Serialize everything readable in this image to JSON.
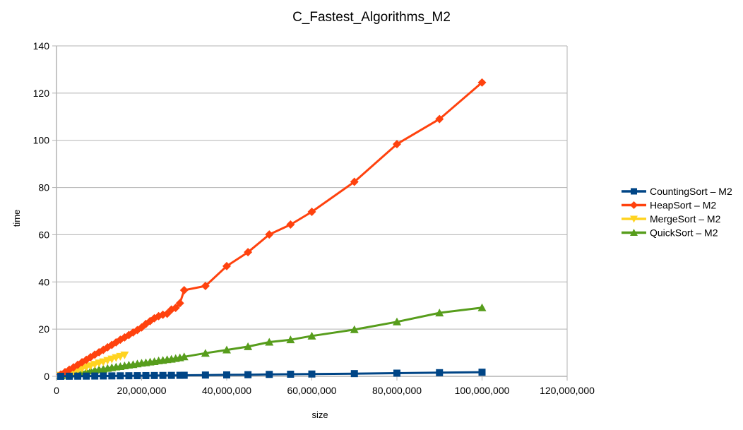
{
  "chart_data": {
    "type": "line",
    "title": "C_Fastest_Algorithms_M2",
    "xlabel": "size",
    "ylabel": "time",
    "xlim": [
      0,
      120000000
    ],
    "ylim": [
      0,
      140
    ],
    "x_ticks": [
      "0",
      "20,000,000",
      "40,000,000",
      "60,000,000",
      "80,000,000",
      "100,000,000",
      "120,000,000"
    ],
    "y_ticks": [
      "0",
      "20",
      "40",
      "60",
      "80",
      "100",
      "120",
      "140"
    ],
    "grid": "horizontal",
    "legend_position": "right",
    "series": [
      {
        "name": "CountingSort – M2",
        "color": "#004586",
        "marker": "square",
        "x": [
          1000000,
          3000000,
          5000000,
          7000000,
          9000000,
          11000000,
          13000000,
          15000000,
          17000000,
          19000000,
          21000000,
          23000000,
          25000000,
          27000000,
          29000000,
          30000000,
          35000000,
          40000000,
          45000000,
          50000000,
          55000000,
          60000000,
          70000000,
          80000000,
          90000000,
          100000000
        ],
        "y": [
          0.02,
          0.05,
          0.08,
          0.1,
          0.13,
          0.16,
          0.19,
          0.22,
          0.25,
          0.28,
          0.31,
          0.34,
          0.37,
          0.4,
          0.43,
          0.45,
          0.55,
          0.62,
          0.7,
          0.82,
          0.9,
          0.98,
          1.15,
          1.35,
          1.55,
          1.75
        ]
      },
      {
        "name": "HeapSort – M2",
        "color": "#ff420e",
        "marker": "diamond",
        "x": [
          1000000,
          2000000,
          3000000,
          4000000,
          5000000,
          6000000,
          7000000,
          8000000,
          9000000,
          10000000,
          11000000,
          12000000,
          13000000,
          14000000,
          15000000,
          16000000,
          17000000,
          18000000,
          19000000,
          20000000,
          21000000,
          22000000,
          23000000,
          24000000,
          25000000,
          26000000,
          27000000,
          28000000,
          29000000,
          30000000,
          35000000,
          40000000,
          45000000,
          50000000,
          55000000,
          60000000,
          70000000,
          80000000,
          90000000,
          100000000
        ],
        "y": [
          0.8,
          1.8,
          2.8,
          3.8,
          4.9,
          6.0,
          7.0,
          8.1,
          9.2,
          10.2,
          11.2,
          12.3,
          13.3,
          14.4,
          15.5,
          16.5,
          17.5,
          18.6,
          19.6,
          20.7,
          22.2,
          23.4,
          24.6,
          25.5,
          26.1,
          26.5,
          28.3,
          29.0,
          31.0,
          36.5,
          38.3,
          46.7,
          52.6,
          60.1,
          64.3,
          69.7,
          82.4,
          98.4,
          109.0,
          124.5
        ]
      },
      {
        "name": "MergeSort – M2",
        "color": "#ffd320",
        "marker": "triangle-down",
        "x": [
          1000000,
          2000000,
          3000000,
          4000000,
          5000000,
          6000000,
          7000000,
          8000000,
          9000000,
          10000000,
          11000000,
          12000000,
          13000000,
          14000000,
          15000000,
          16000000
        ],
        "y": [
          0.4,
          0.9,
          1.4,
          2.0,
          2.6,
          3.2,
          3.8,
          4.4,
          5.0,
          5.6,
          6.1,
          6.7,
          7.3,
          7.9,
          8.4,
          9.0
        ]
      },
      {
        "name": "QuickSort – M2",
        "color": "#579d1c",
        "marker": "triangle-up",
        "x": [
          1000000,
          2000000,
          3000000,
          4000000,
          5000000,
          6000000,
          7000000,
          8000000,
          9000000,
          10000000,
          11000000,
          12000000,
          13000000,
          14000000,
          15000000,
          16000000,
          17000000,
          18000000,
          19000000,
          20000000,
          21000000,
          22000000,
          23000000,
          24000000,
          25000000,
          26000000,
          27000000,
          28000000,
          29000000,
          30000000,
          35000000,
          40000000,
          45000000,
          50000000,
          55000000,
          60000000,
          70000000,
          80000000,
          90000000,
          100000000
        ],
        "y": [
          0.25,
          0.5,
          0.8,
          1.1,
          1.4,
          1.7,
          2.0,
          2.3,
          2.6,
          2.9,
          3.1,
          3.4,
          3.7,
          4.0,
          4.2,
          4.5,
          4.8,
          5.0,
          5.3,
          5.6,
          5.8,
          6.1,
          6.3,
          6.6,
          6.8,
          7.1,
          7.3,
          7.6,
          7.9,
          8.3,
          9.8,
          11.2,
          12.6,
          14.5,
          15.5,
          17.1,
          19.8,
          23.1,
          26.9,
          29.1
        ]
      }
    ]
  }
}
